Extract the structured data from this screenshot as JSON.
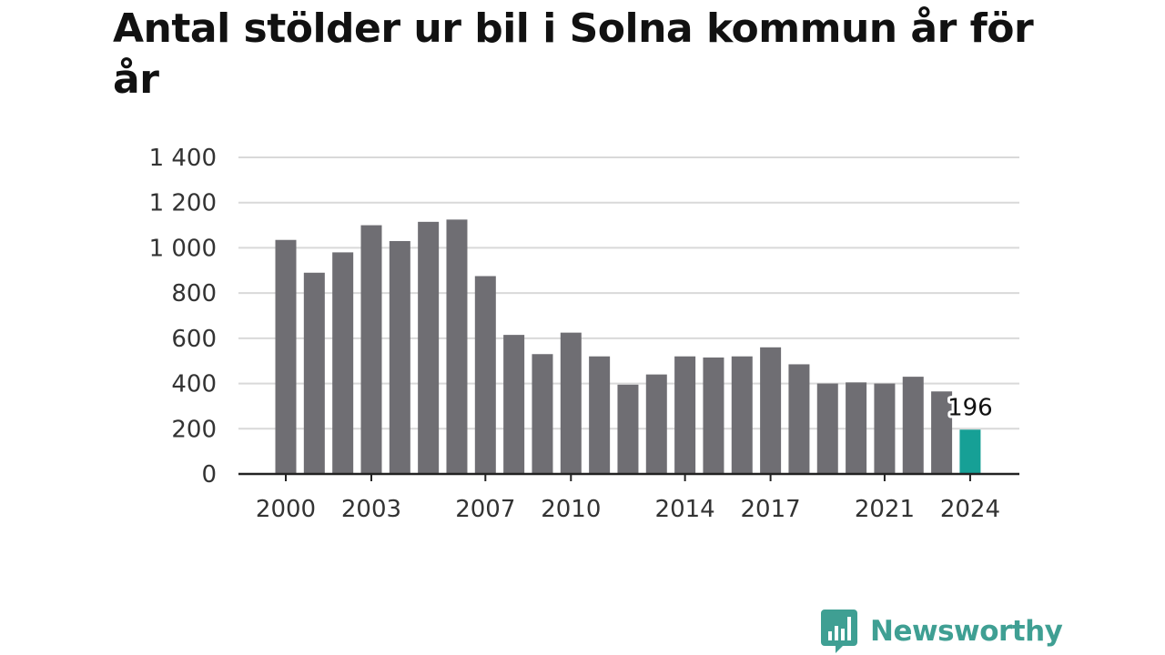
{
  "chart_data": {
    "type": "bar",
    "title": "Antal stölder ur bil i Solna kommun år för år",
    "xlabel": "",
    "ylabel": "",
    "ylim": [
      0,
      1400
    ],
    "yticks": [
      0,
      200,
      400,
      600,
      800,
      1000,
      1200,
      1400
    ],
    "ytick_labels": [
      "0",
      "200",
      "400",
      "600",
      "800",
      "1 000",
      "1 200",
      "1 400"
    ],
    "xtick_labels": [
      "2000",
      "2003",
      "2007",
      "2010",
      "2014",
      "2017",
      "2021",
      "2024"
    ],
    "grid": true,
    "categories": [
      "2000",
      "2001",
      "2002",
      "2003",
      "2004",
      "2005",
      "2006",
      "2007",
      "2008",
      "2009",
      "2010",
      "2011",
      "2012",
      "2013",
      "2014",
      "2015",
      "2016",
      "2017",
      "2018",
      "2019",
      "2020",
      "2021",
      "2022",
      "2023",
      "2024"
    ],
    "values": [
      1035,
      890,
      980,
      1100,
      1030,
      1115,
      1125,
      875,
      615,
      530,
      625,
      520,
      395,
      440,
      520,
      515,
      520,
      560,
      485,
      400,
      405,
      400,
      430,
      365,
      196
    ],
    "highlight": {
      "category": "2024",
      "label": "196"
    },
    "colors": {
      "bar": "#6f6e73",
      "highlight": "#16a096",
      "grid": "#d9d9d9",
      "axis": "#222222"
    }
  },
  "brand": {
    "name": "Newsworthy",
    "logo_icon": "newsworthy-chart-bubble-icon",
    "color": "#3f9f93"
  }
}
